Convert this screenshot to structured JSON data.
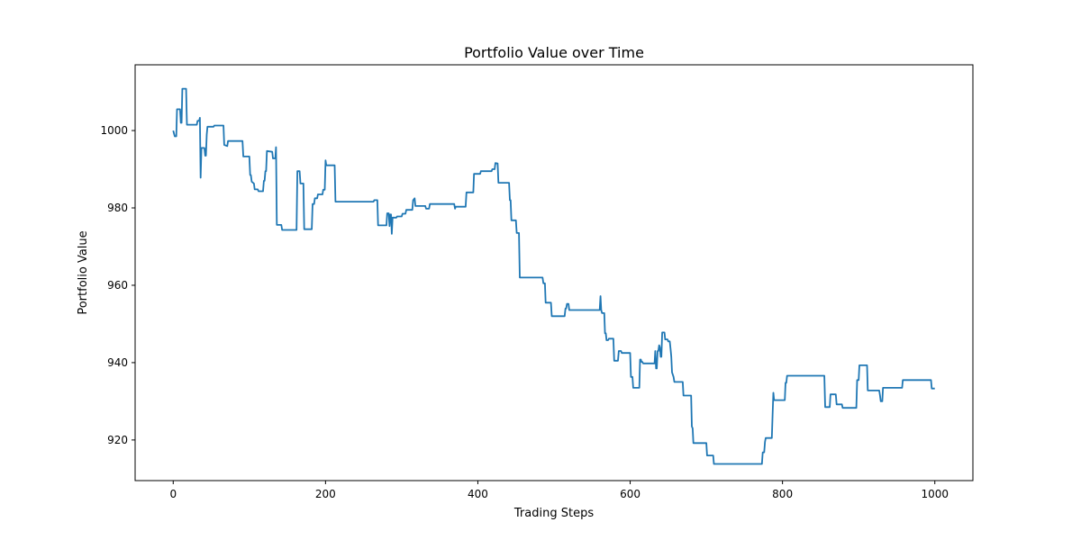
{
  "chart_data": {
    "type": "line",
    "title": "Portfolio Value over Time",
    "xlabel": "Trading Steps",
    "ylabel": "Portfolio Value",
    "xlim": [
      -50,
      1050
    ],
    "ylim": [
      909.5,
      1017
    ],
    "xticks": [
      0,
      200,
      400,
      600,
      800,
      1000
    ],
    "yticks": [
      920,
      940,
      960,
      980,
      1000
    ],
    "grid": false,
    "line_color": "#1f77b4",
    "series": [
      {
        "points": [
          [
            0,
            1000
          ],
          [
            2,
            998.5
          ],
          [
            4,
            998.5
          ],
          [
            5,
            1005.5
          ],
          [
            9,
            1005.5
          ],
          [
            10,
            1002
          ],
          [
            11,
            1002
          ],
          [
            12,
            1010.8
          ],
          [
            17,
            1010.8
          ],
          [
            18,
            1001.5
          ],
          [
            31,
            1001.5
          ],
          [
            32,
            1002.5
          ],
          [
            34,
            1002.5
          ],
          [
            35,
            1003.3
          ],
          [
            36,
            987.8
          ],
          [
            37,
            995.5
          ],
          [
            41,
            995.5
          ],
          [
            42,
            993.5
          ],
          [
            43,
            993.5
          ],
          [
            44,
            999
          ],
          [
            45,
            1001
          ],
          [
            53,
            1001
          ],
          [
            54,
            1001.3
          ],
          [
            66,
            1001.3
          ],
          [
            67,
            996.3
          ],
          [
            71,
            996
          ],
          [
            72,
            997.3
          ],
          [
            91,
            997.3
          ],
          [
            92,
            993.3
          ],
          [
            100,
            993.3
          ],
          [
            101,
            988.5
          ],
          [
            102,
            988.5
          ],
          [
            103,
            986.8
          ],
          [
            106,
            986.3
          ],
          [
            107,
            984.8
          ],
          [
            111,
            984.8
          ],
          [
            112,
            984.3
          ],
          [
            118,
            984.3
          ],
          [
            119,
            987
          ],
          [
            120,
            987
          ],
          [
            121,
            989.5
          ],
          [
            122,
            989.5
          ],
          [
            123,
            994.7
          ],
          [
            130,
            994.5
          ],
          [
            131,
            992.8
          ],
          [
            134,
            992.8
          ],
          [
            135,
            995.7
          ],
          [
            136,
            975.6
          ],
          [
            142,
            975.6
          ],
          [
            143,
            974.3
          ],
          [
            162,
            974.3
          ],
          [
            163,
            989.5
          ],
          [
            166,
            989.5
          ],
          [
            167,
            986.3
          ],
          [
            171,
            986.3
          ],
          [
            172,
            974.5
          ],
          [
            182,
            974.5
          ],
          [
            183,
            981
          ],
          [
            185,
            981
          ],
          [
            186,
            982.5
          ],
          [
            189,
            982.5
          ],
          [
            190,
            983.5
          ],
          [
            196,
            983.5
          ],
          [
            197,
            984.7
          ],
          [
            199,
            984.7
          ],
          [
            200,
            992.3
          ],
          [
            201,
            991
          ],
          [
            212,
            991
          ],
          [
            213,
            981.6
          ],
          [
            263,
            981.6
          ],
          [
            264,
            982
          ],
          [
            268,
            982
          ],
          [
            269,
            975.5
          ],
          [
            280,
            975.5
          ],
          [
            281,
            978.6
          ],
          [
            283,
            978.6
          ],
          [
            284,
            975.3
          ],
          [
            285,
            978.3
          ],
          [
            286,
            978.3
          ],
          [
            287,
            973.3
          ],
          [
            288,
            977.5
          ],
          [
            293,
            977.5
          ],
          [
            294,
            977.8
          ],
          [
            300,
            977.8
          ],
          [
            301,
            978.5
          ],
          [
            305,
            978.5
          ],
          [
            306,
            979.5
          ],
          [
            314,
            979.5
          ],
          [
            315,
            982
          ],
          [
            317,
            982.5
          ],
          [
            318,
            980.5
          ],
          [
            331,
            980.5
          ],
          [
            332,
            979.8
          ],
          [
            336,
            979.8
          ],
          [
            337,
            981
          ],
          [
            369,
            981
          ],
          [
            370,
            979.8
          ],
          [
            371,
            980.3
          ],
          [
            384,
            980.3
          ],
          [
            385,
            984
          ],
          [
            394,
            984
          ],
          [
            395,
            988.8
          ],
          [
            403,
            988.8
          ],
          [
            404,
            989.5
          ],
          [
            418,
            989.5
          ],
          [
            419,
            990
          ],
          [
            422,
            990
          ],
          [
            423,
            991.6
          ],
          [
            426,
            991.5
          ],
          [
            427,
            986.5
          ],
          [
            441,
            986.5
          ],
          [
            442,
            982
          ],
          [
            443,
            982
          ],
          [
            444,
            976.8
          ],
          [
            450,
            976.8
          ],
          [
            451,
            973.5
          ],
          [
            454,
            973.5
          ],
          [
            455,
            962
          ],
          [
            485,
            962
          ],
          [
            486,
            960.5
          ],
          [
            488,
            960.5
          ],
          [
            489,
            955.5
          ],
          [
            496,
            955.5
          ],
          [
            497,
            952
          ],
          [
            514,
            952
          ],
          [
            515,
            954
          ],
          [
            516,
            954
          ],
          [
            517,
            955.2
          ],
          [
            519,
            955.2
          ],
          [
            520,
            953.6
          ],
          [
            560,
            953.6
          ],
          [
            561,
            957.2
          ],
          [
            562,
            953.6
          ],
          [
            563,
            952.8
          ],
          [
            566,
            952.8
          ],
          [
            567,
            947.6
          ],
          [
            568,
            947.6
          ],
          [
            569,
            945.8
          ],
          [
            571,
            945.8
          ],
          [
            572,
            946.2
          ],
          [
            578,
            946.2
          ],
          [
            579,
            940.5
          ],
          [
            584,
            940.5
          ],
          [
            585,
            943
          ],
          [
            588,
            943
          ],
          [
            589,
            942.5
          ],
          [
            600,
            942.5
          ],
          [
            601,
            936.3
          ],
          [
            603,
            936.3
          ],
          [
            604,
            933.5
          ],
          [
            612,
            933.5
          ],
          [
            613,
            940.8
          ],
          [
            614,
            940.8
          ],
          [
            615,
            940.2
          ],
          [
            616,
            940.2
          ],
          [
            617,
            939.8
          ],
          [
            632,
            939.8
          ],
          [
            633,
            943
          ],
          [
            634,
            938.5
          ],
          [
            635,
            938.5
          ],
          [
            636,
            943
          ],
          [
            637,
            943
          ],
          [
            638,
            944.5
          ],
          [
            639,
            944
          ],
          [
            640,
            941.5
          ],
          [
            641,
            941.5
          ],
          [
            642,
            947.8
          ],
          [
            645,
            947.8
          ],
          [
            646,
            946
          ],
          [
            649,
            946
          ],
          [
            650,
            945.5
          ],
          [
            652,
            945.5
          ],
          [
            653,
            943.5
          ],
          [
            654,
            941.5
          ],
          [
            655,
            937.5
          ],
          [
            657,
            936.3
          ],
          [
            658,
            935
          ],
          [
            669,
            935
          ],
          [
            670,
            931.5
          ],
          [
            680,
            931.5
          ],
          [
            681,
            923.5
          ],
          [
            682,
            923
          ],
          [
            683,
            919.2
          ],
          [
            700,
            919.2
          ],
          [
            701,
            916
          ],
          [
            709,
            916
          ],
          [
            710,
            913.8
          ],
          [
            773,
            913.8
          ],
          [
            774,
            916.8
          ],
          [
            776,
            916.8
          ],
          [
            777,
            919.5
          ],
          [
            778,
            920.5
          ],
          [
            786,
            920.5
          ],
          [
            787,
            926.2
          ],
          [
            788,
            932.2
          ],
          [
            789,
            930.3
          ],
          [
            803,
            930.3
          ],
          [
            804,
            934.8
          ],
          [
            805,
            934.8
          ],
          [
            806,
            936.6
          ],
          [
            855,
            936.6
          ],
          [
            856,
            928.5
          ],
          [
            862,
            928.5
          ],
          [
            863,
            931.8
          ],
          [
            870,
            931.8
          ],
          [
            871,
            929.2
          ],
          [
            878,
            929.2
          ],
          [
            879,
            928.3
          ],
          [
            897,
            928.3
          ],
          [
            898,
            935.5
          ],
          [
            900,
            935.5
          ],
          [
            901,
            939.3
          ],
          [
            911,
            939.3
          ],
          [
            912,
            932.8
          ],
          [
            927,
            932.8
          ],
          [
            928,
            931.5
          ],
          [
            929,
            930
          ],
          [
            931,
            930
          ],
          [
            932,
            933.5
          ],
          [
            957,
            933.5
          ],
          [
            958,
            935.5
          ],
          [
            995,
            935.5
          ],
          [
            996,
            933.3
          ],
          [
            1000,
            933.3
          ]
        ]
      }
    ]
  }
}
